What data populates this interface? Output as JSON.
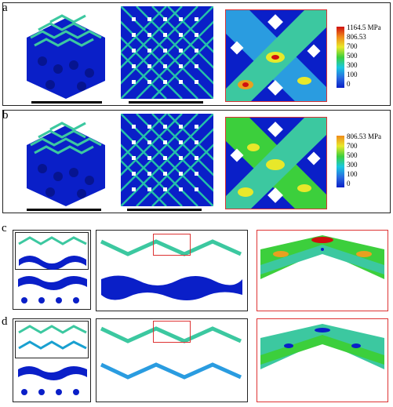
{
  "panels": {
    "a": {
      "label": "a",
      "legend": [
        "1164.5 MPa",
        "806.53",
        "700",
        "500",
        "300",
        "100",
        "0"
      ]
    },
    "b": {
      "label": "b",
      "legend": [
        "806.53 MPa",
        "700",
        "500",
        "300",
        "100",
        "0"
      ]
    },
    "c": {
      "label": "c"
    },
    "d": {
      "label": "d"
    }
  },
  "colors": {
    "blue": "#0a1fc8",
    "cyan": "#19c8e0",
    "green": "#3ccf3c",
    "yellow": "#e8e82a",
    "orange": "#f08a1a",
    "red": "#d01010",
    "frame_red": "#d33333"
  }
}
